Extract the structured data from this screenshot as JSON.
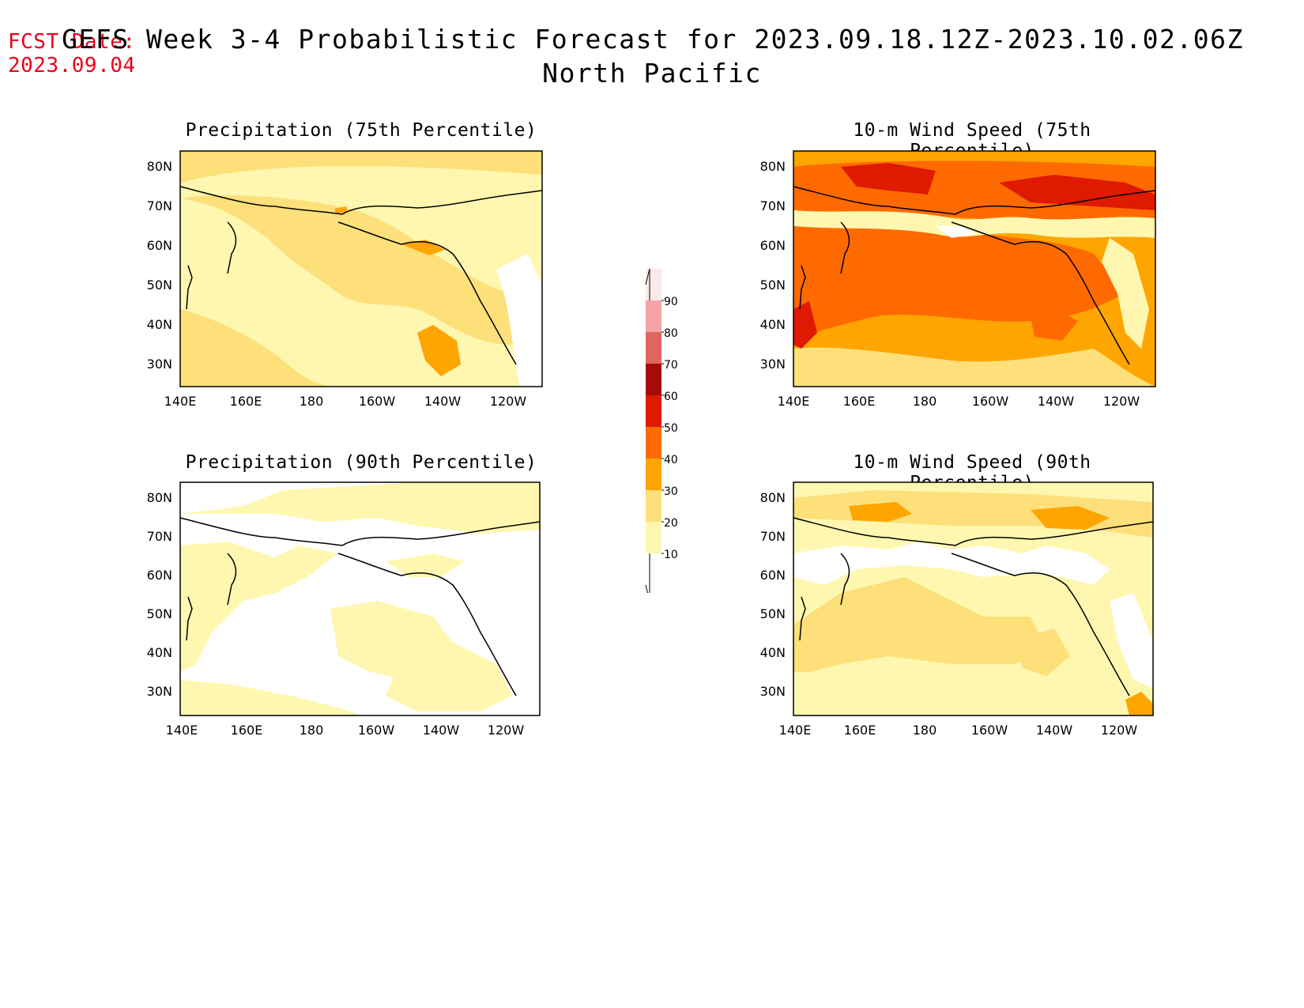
{
  "header": {
    "fcst_label": "FCST Date:",
    "fcst_date": "2023.09.04",
    "title": "GEFS Week 3-4 Probabilistic Forecast for 2023.09.18.12Z-2023.10.02.06Z",
    "subtitle": "North Pacific"
  },
  "axes": {
    "lat_ticks": [
      "80N",
      "70N",
      "60N",
      "50N",
      "40N",
      "30N"
    ],
    "lon_ticks": [
      "140E",
      "160E",
      "180",
      "160W",
      "140W",
      "120W"
    ]
  },
  "panels": [
    {
      "id": "precip-75",
      "title": "Precipitation (75th Percentile)",
      "base_level": "10-20"
    },
    {
      "id": "wind-75",
      "title": "10-m Wind Speed (75th Percentile)",
      "base_level": "30-40"
    },
    {
      "id": "precip-90",
      "title": "Precipitation (90th Percentile)",
      "base_level": "0-10"
    },
    {
      "id": "wind-90",
      "title": "10-m Wind Speed (90th Percentile)",
      "base_level": "10-20"
    }
  ],
  "colorbar": {
    "labels": [
      "90",
      "80",
      "70",
      "60",
      "50",
      "40",
      "30",
      "20",
      "10"
    ],
    "colors": [
      "#fde8ea",
      "#f4a3a8",
      "#df6660",
      "#a60a0a",
      "#df1a00",
      "#ff6a00",
      "#ffa500",
      "#fde07a",
      "#fff7b0"
    ]
  },
  "colors": {
    "title_red": "#e8001c",
    "level_10_20": "#fff7b0",
    "level_20_30": "#fde07a",
    "level_30_40": "#ffa500",
    "level_40_50": "#ff6a00",
    "level_50_60": "#df1a00",
    "level_60_70": "#a60a0a"
  }
}
